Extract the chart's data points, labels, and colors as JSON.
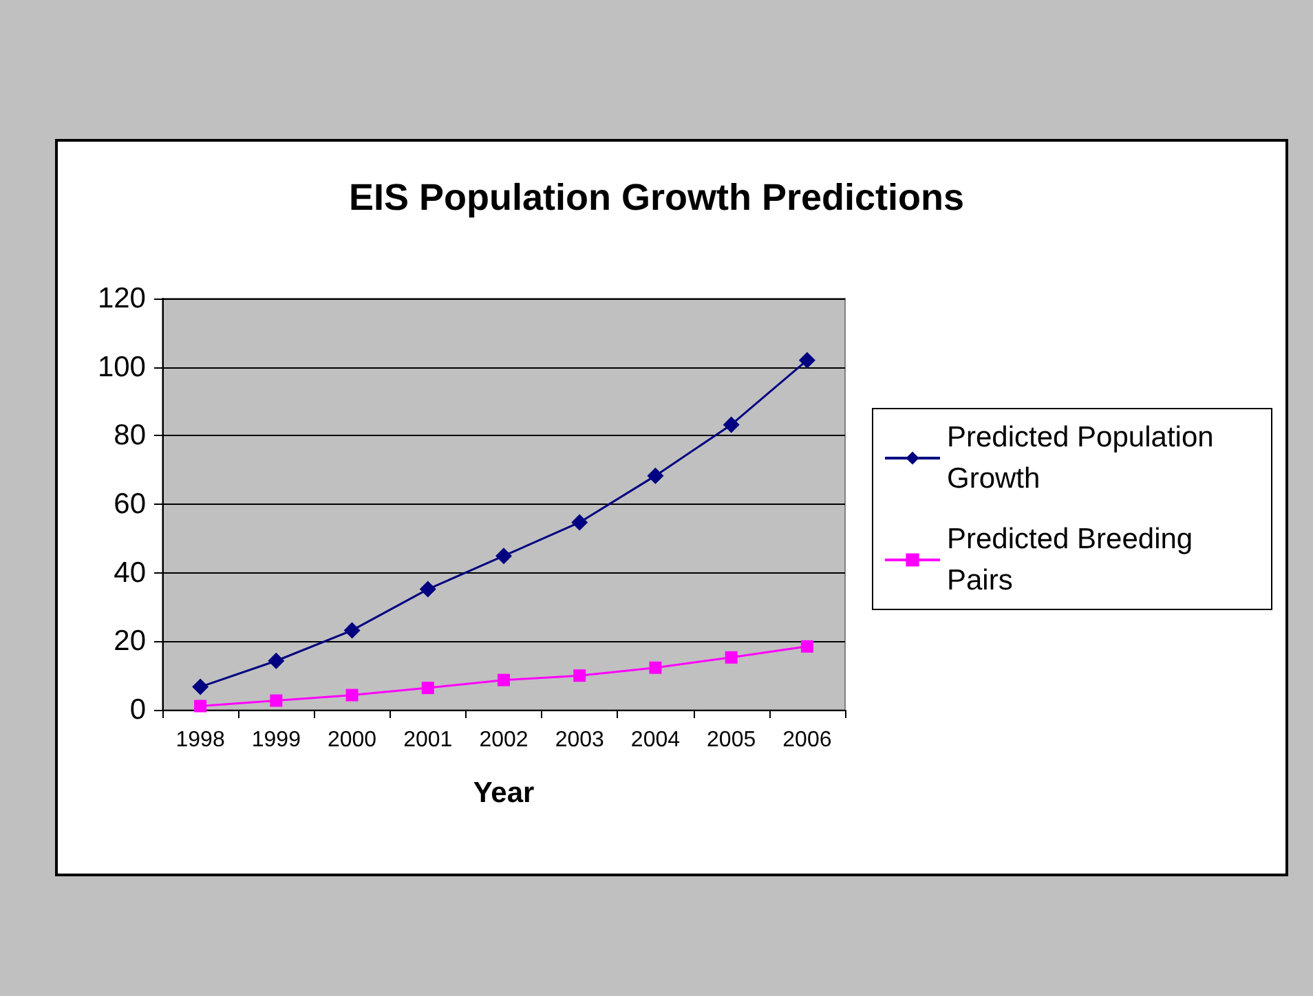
{
  "chart_data": {
    "type": "line",
    "title": "EIS Population Growth Predictions",
    "xlabel": "Year",
    "categories": [
      "1998",
      "1999",
      "2000",
      "2001",
      "2002",
      "2003",
      "2004",
      "2005",
      "2006"
    ],
    "series": [
      {
        "name": "Predicted Population Growth",
        "color": "#000080",
        "marker": "diamond",
        "values": [
          6.7,
          14.3,
          23.2,
          35.2,
          44.9,
          54.7,
          68.3,
          83.2,
          102
        ]
      },
      {
        "name": "Predicted Breeding Pairs",
        "color": "#ff00ff",
        "marker": "square",
        "values": [
          1.1,
          2.7,
          4.3,
          6.4,
          8.7,
          10,
          12.3,
          15.3,
          18.5
        ]
      }
    ],
    "ylim": [
      0,
      120
    ],
    "yticks": [
      0,
      20,
      40,
      60,
      80,
      100,
      120
    ],
    "grid": "y",
    "legend": "right",
    "line_style": "solid"
  }
}
